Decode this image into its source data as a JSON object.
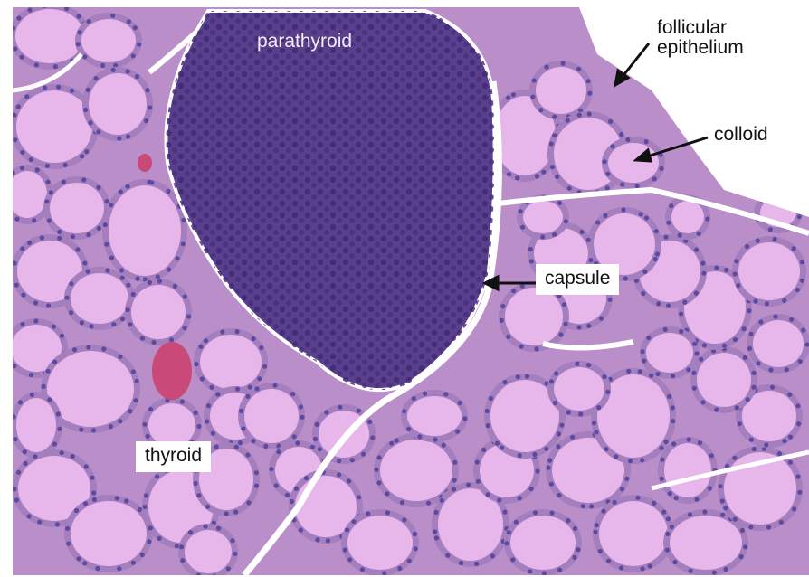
{
  "figure": {
    "labels": {
      "parathyroid": "parathyroid",
      "follicular_epithelium": "follicular\nepithelium",
      "colloid": "colloid",
      "capsule": "capsule",
      "thyroid": "thyroid"
    },
    "colors": {
      "background": "#ffffff",
      "stroma": "#b98ec9",
      "colloid": "#e7b6ea",
      "parathyroid": "#5a3f8d",
      "nucleus": "#5c4aa0",
      "blood": "#c94a78",
      "arrow": "#111111"
    }
  }
}
